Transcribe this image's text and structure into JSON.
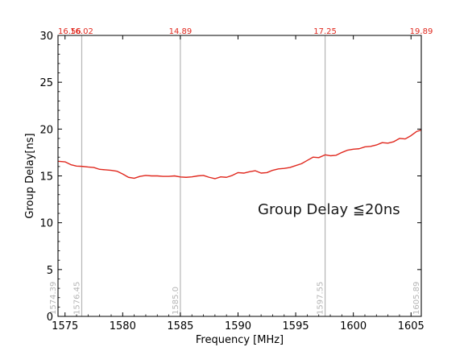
{
  "chart_data": {
    "type": "line",
    "xlabel": "Frequency [MHz]",
    "ylabel": "Group Delay[ns]",
    "xlim": [
      1574.39,
      1605.89
    ],
    "ylim": [
      0,
      30
    ],
    "xticks": [
      "1575",
      "1580",
      "1585",
      "1590",
      "1595",
      "1600",
      "1605"
    ],
    "yticks": [
      "0",
      "5",
      "10",
      "15",
      "20",
      "25",
      "30"
    ],
    "annotation": "Group Delay ≦20ns",
    "grid": false,
    "colors": {
      "line": "#e0281e",
      "marker_line": "#b5b5b5",
      "marker_top_text": "#e0281e",
      "marker_bottom_text": "#b5b5b5"
    },
    "markers": [
      {
        "freq": 1574.39,
        "freq_label": "1574.39",
        "delay_label": "16.56"
      },
      {
        "freq": 1576.45,
        "freq_label": "1576.45",
        "delay_label": "16.02"
      },
      {
        "freq": 1585.0,
        "freq_label": "1585.0",
        "delay_label": "14.89"
      },
      {
        "freq": 1597.55,
        "freq_label": "1597.55",
        "delay_label": "17.25"
      },
      {
        "freq": 1605.89,
        "freq_label": "1605.89",
        "delay_label": "19.89"
      }
    ],
    "series": [
      {
        "x": [
          1574.39,
          1575.0,
          1575.5,
          1576.0,
          1576.45,
          1577.0,
          1577.5,
          1578.0,
          1578.5,
          1579.0,
          1579.5,
          1580.0,
          1580.5,
          1581.0,
          1581.5,
          1582.0,
          1582.5,
          1583.0,
          1583.5,
          1584.0,
          1584.5,
          1585.0,
          1585.5,
          1586.0,
          1586.5,
          1587.0,
          1587.5,
          1588.0,
          1588.5,
          1589.0,
          1589.5,
          1590.0,
          1590.5,
          1591.0,
          1591.5,
          1592.0,
          1592.5,
          1593.0,
          1593.5,
          1594.0,
          1594.5,
          1595.0,
          1595.5,
          1596.0,
          1596.5,
          1597.0,
          1597.55,
          1598.0,
          1598.5,
          1599.0,
          1599.5,
          1600.0,
          1600.5,
          1601.0,
          1601.5,
          1602.0,
          1602.5,
          1603.0,
          1603.5,
          1604.0,
          1604.5,
          1605.0,
          1605.5,
          1605.89
        ],
        "values": [
          16.56,
          16.5,
          16.2,
          16.05,
          16.02,
          15.95,
          15.9,
          15.7,
          15.65,
          15.6,
          15.5,
          15.2,
          14.85,
          14.75,
          14.95,
          15.05,
          15.0,
          15.0,
          14.95,
          14.95,
          15.0,
          14.89,
          14.85,
          14.9,
          15.0,
          15.05,
          14.85,
          14.7,
          14.9,
          14.85,
          15.05,
          15.35,
          15.3,
          15.45,
          15.55,
          15.3,
          15.35,
          15.6,
          15.75,
          15.8,
          15.9,
          16.1,
          16.3,
          16.65,
          17.0,
          16.95,
          17.25,
          17.15,
          17.2,
          17.5,
          17.75,
          17.85,
          17.9,
          18.1,
          18.15,
          18.3,
          18.55,
          18.5,
          18.65,
          19.0,
          18.95,
          19.3,
          19.75,
          19.89
        ]
      }
    ]
  }
}
